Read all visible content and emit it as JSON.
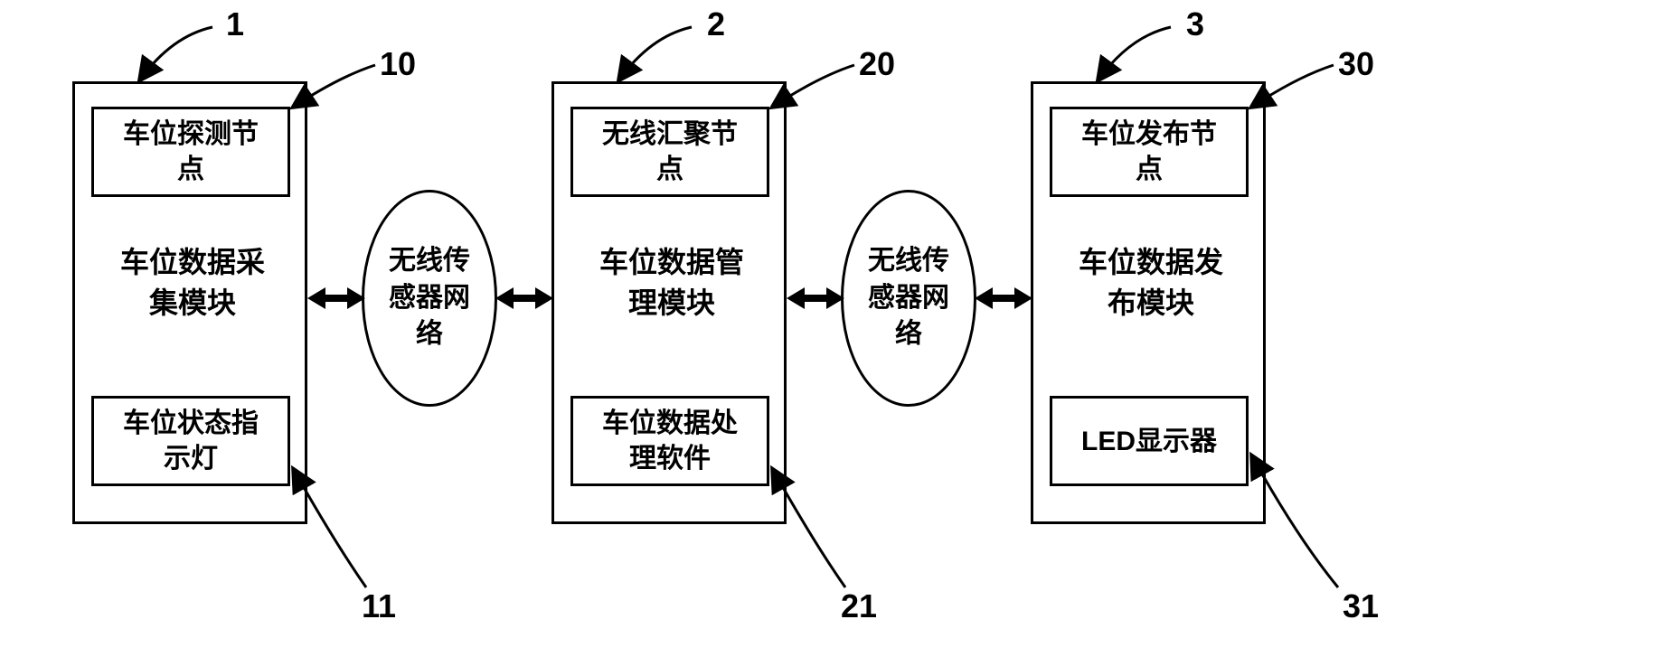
{
  "modules": {
    "m1": {
      "title": "车位数据采\n集模块",
      "top_box": "车位探测节\n点",
      "bottom_box": "车位状态指\n示灯",
      "top_num": "1",
      "sub_top_num": "10",
      "sub_bottom_num": "11"
    },
    "m2": {
      "title": "车位数据管\n理模块",
      "top_box": "无线汇聚节\n点",
      "bottom_box": "车位数据处\n理软件",
      "top_num": "2",
      "sub_top_num": "20",
      "sub_bottom_num": "21"
    },
    "m3": {
      "title": "车位数据发\n布模块",
      "top_box": "车位发布节\n点",
      "bottom_box": "LED显示器",
      "top_num": "3",
      "sub_top_num": "30",
      "sub_bottom_num": "31"
    }
  },
  "ellipse1": "无线传\n感器网\n络",
  "ellipse2": "无线传\n感器网\n络",
  "style": {
    "font_size_box": 30,
    "font_size_title": 32,
    "font_size_label": 36,
    "border_color": "#000000",
    "bg_color": "#ffffff",
    "module_w": 260,
    "module_h": 490,
    "inner_w": 220,
    "inner_h": 100,
    "ellipse_w": 150,
    "ellipse_h": 240
  }
}
